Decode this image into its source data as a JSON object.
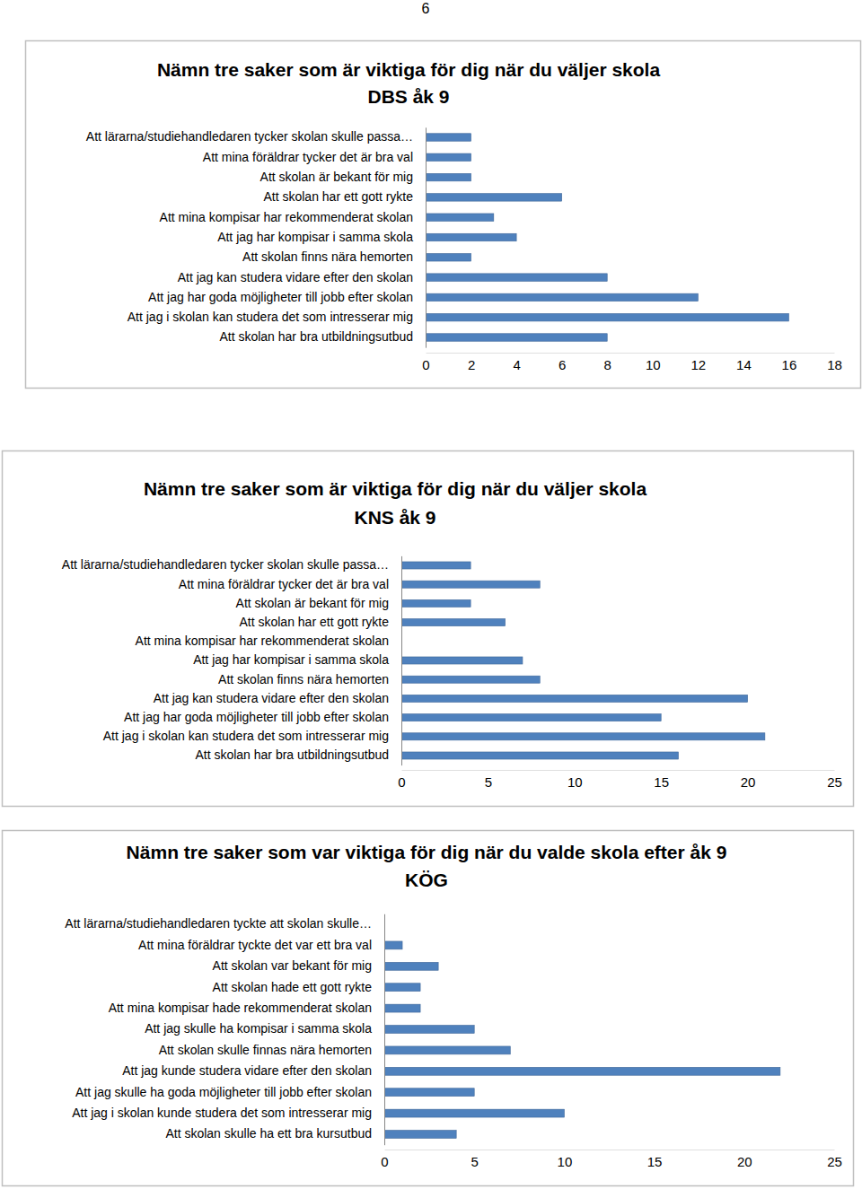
{
  "page_number": "6",
  "chart_data": [
    {
      "type": "bar",
      "orientation": "horizontal",
      "title": "Nämn tre saker som är viktiga för dig när du väljer skola",
      "subtitle": "DBS åk 9",
      "categories": [
        "Att lärarna/studiehandledaren tycker skolan skulle passa…",
        "Att mina föräldrar tycker det är bra val",
        "Att skolan är bekant för mig",
        "Att skolan har ett gott rykte",
        "Att mina kompisar har rekommenderat skolan",
        "Att jag har kompisar i samma skola",
        "Att skolan finns nära hemorten",
        "Att jag kan studera vidare efter den skolan",
        "Att jag har goda möjligheter till jobb efter skolan",
        "Att jag i skolan kan studera det som intresserar mig",
        "Att skolan har bra utbildningsutbud"
      ],
      "values": [
        2,
        2,
        2,
        6,
        3,
        4,
        2,
        8,
        12,
        16,
        8
      ],
      "color": "#4f81bd",
      "xlim": [
        0,
        18
      ],
      "xticks": [
        0,
        2,
        4,
        6,
        8,
        10,
        12,
        14,
        16,
        18
      ]
    },
    {
      "type": "bar",
      "orientation": "horizontal",
      "title": "Nämn tre saker som är viktiga för dig när du väljer skola",
      "subtitle": "KNS åk 9",
      "categories": [
        "Att lärarna/studiehandledaren tycker skolan skulle passa…",
        "Att mina föräldrar tycker det är bra val",
        "Att skolan är bekant för mig",
        "Att skolan har ett gott rykte",
        "Att mina kompisar har rekommenderat skolan",
        "Att jag har kompisar i samma skola",
        "Att skolan finns nära hemorten",
        "Att jag kan studera vidare efter den skolan",
        "Att jag har goda möjligheter till jobb efter skolan",
        "Att jag i skolan kan studera det som intresserar mig",
        "Att skolan har bra utbildningsutbud"
      ],
      "values": [
        4,
        8,
        4,
        6,
        0,
        7,
        8,
        20,
        15,
        21,
        16
      ],
      "color": "#4f81bd",
      "xlim": [
        0,
        25
      ],
      "xticks": [
        0,
        5,
        10,
        15,
        20,
        25
      ]
    },
    {
      "type": "bar",
      "orientation": "horizontal",
      "title": "Nämn tre saker som var viktiga för dig när du valde skola efter åk 9",
      "subtitle": "KÖG",
      "categories": [
        "Att lärarna/studiehandledaren tyckte att skolan skulle…",
        "Att mina föräldrar tyckte det var ett bra val",
        "Att skolan var bekant för mig",
        "Att skolan hade ett gott rykte",
        "Att mina kompisar hade rekommenderat skolan",
        "Att jag skulle ha kompisar i samma skola",
        "Att skolan skulle finnas nära hemorten",
        "Att jag kunde studera vidare efter den skolan",
        "Att jag skulle ha goda möjligheter till jobb efter skolan",
        "Att jag i skolan kunde studera det som intresserar mig",
        "Att skolan skulle ha ett bra kursutbud"
      ],
      "values": [
        0,
        1,
        3,
        2,
        2,
        5,
        7,
        22,
        5,
        10,
        4
      ],
      "color": "#4f81bd",
      "xlim": [
        0,
        25
      ],
      "xticks": [
        0,
        5,
        10,
        15,
        20,
        25
      ]
    }
  ]
}
